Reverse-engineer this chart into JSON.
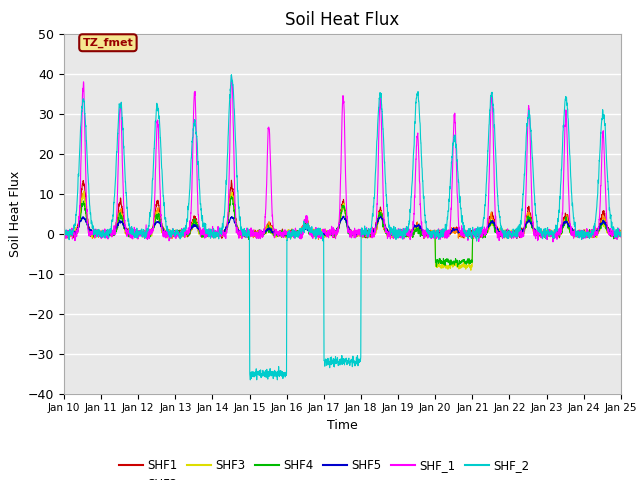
{
  "title": "Soil Heat Flux",
  "xlabel": "Time",
  "ylabel": "Soil Heat Flux",
  "ylim": [
    -40,
    50
  ],
  "xlim_days": [
    0,
    15
  ],
  "x_tick_labels": [
    "Jan 10",
    "Jan 11",
    "Jan 12",
    "Jan 13",
    "Jan 14",
    "Jan 15",
    "Jan 16",
    "Jan 17",
    "Jan 18",
    "Jan 19",
    "Jan 20",
    "Jan 21",
    "Jan 22",
    "Jan 23",
    "Jan 24",
    "Jan 25"
  ],
  "legend_label": "TZ_fmet",
  "series_colors": {
    "SHF1": "#cc0000",
    "SHF2": "#ff8800",
    "SHF3": "#dddd00",
    "SHF4": "#00bb00",
    "SHF5": "#0000cc",
    "SHF_1": "#ff00ff",
    "SHF_2": "#00cccc"
  },
  "bg_color": "#e8e8e8",
  "fig_bg": "#ffffff",
  "grid_color": "#ffffff",
  "yticks": [
    -40,
    -30,
    -20,
    -10,
    0,
    10,
    20,
    30,
    40,
    50
  ]
}
